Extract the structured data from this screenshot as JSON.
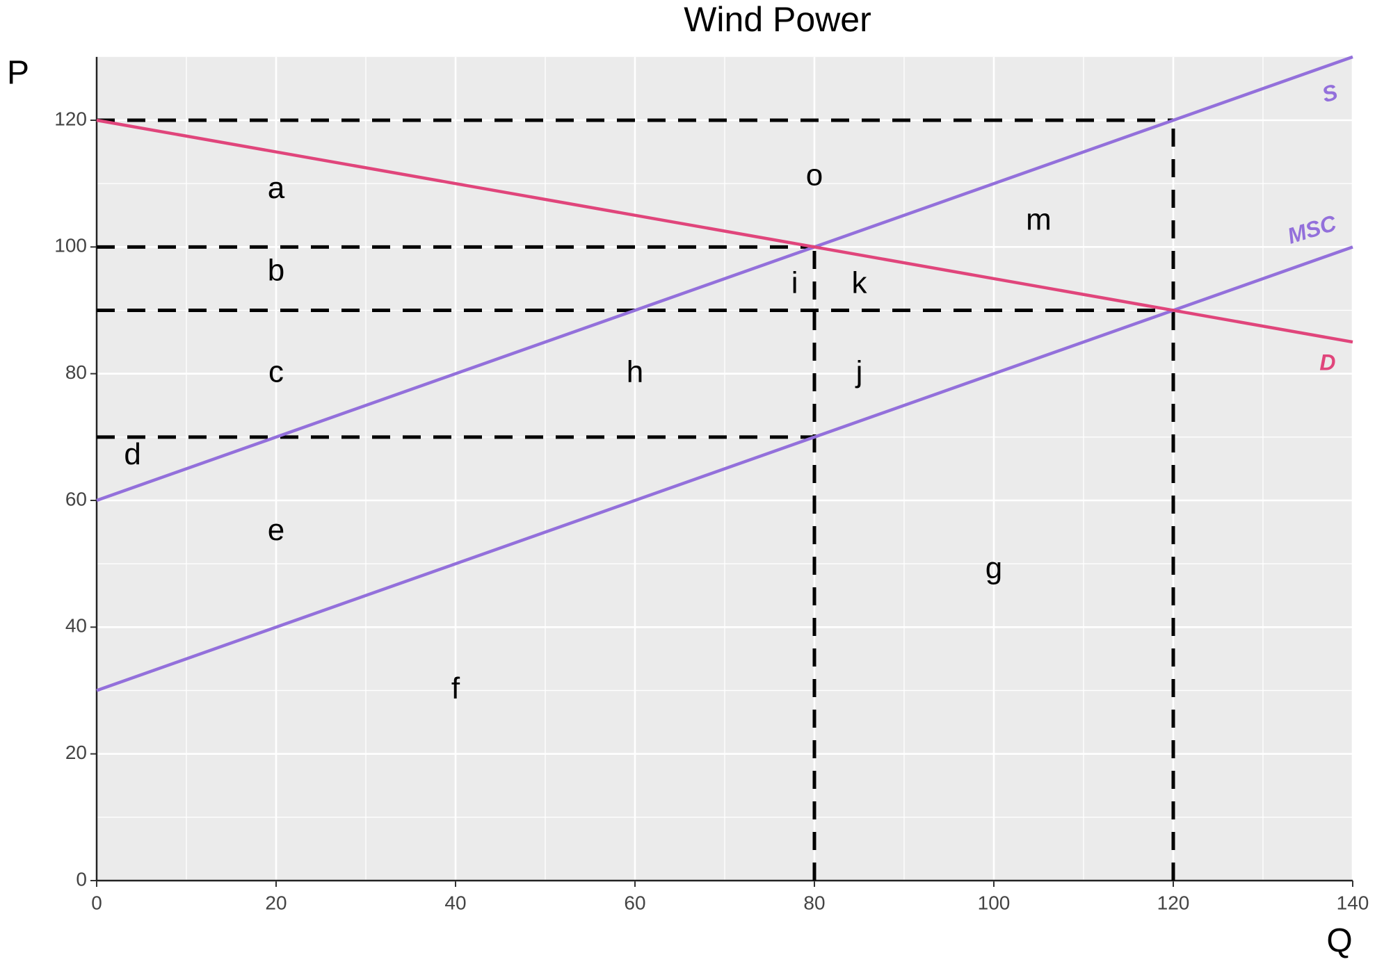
{
  "chart_data": {
    "type": "line",
    "title": "Wind Power",
    "xlabel": "Q",
    "ylabel": "P",
    "xlim": [
      0,
      140
    ],
    "ylim": [
      0,
      130
    ],
    "xticks": [
      0,
      20,
      40,
      60,
      80,
      100,
      120,
      140
    ],
    "yticks": [
      0,
      20,
      40,
      60,
      80,
      100,
      120
    ],
    "grid": true,
    "series": [
      {
        "name": "S",
        "color": "#9370DB",
        "x": [
          0,
          140
        ],
        "values": [
          60,
          130
        ]
      },
      {
        "name": "MSC",
        "color": "#9370DB",
        "x": [
          0,
          140
        ],
        "values": [
          30,
          100
        ]
      },
      {
        "name": "D",
        "color": "#E0457B",
        "x": [
          0,
          140
        ],
        "values": [
          120,
          85
        ]
      }
    ],
    "reference_lines": [
      {
        "x": [
          0,
          120
        ],
        "values": [
          120,
          120
        ]
      },
      {
        "x": [
          0,
          80
        ],
        "values": [
          100,
          100
        ]
      },
      {
        "x": [
          0,
          120
        ],
        "values": [
          90,
          90
        ]
      },
      {
        "x": [
          0,
          80
        ],
        "values": [
          70,
          70
        ]
      },
      {
        "x": [
          80,
          80
        ],
        "values": [
          0,
          100
        ]
      },
      {
        "x": [
          120,
          120
        ],
        "values": [
          0,
          120
        ]
      }
    ],
    "annotations": [
      "a",
      "b",
      "c",
      "d",
      "e",
      "f",
      "g",
      "h",
      "i",
      "j",
      "k",
      "m",
      "o"
    ]
  }
}
